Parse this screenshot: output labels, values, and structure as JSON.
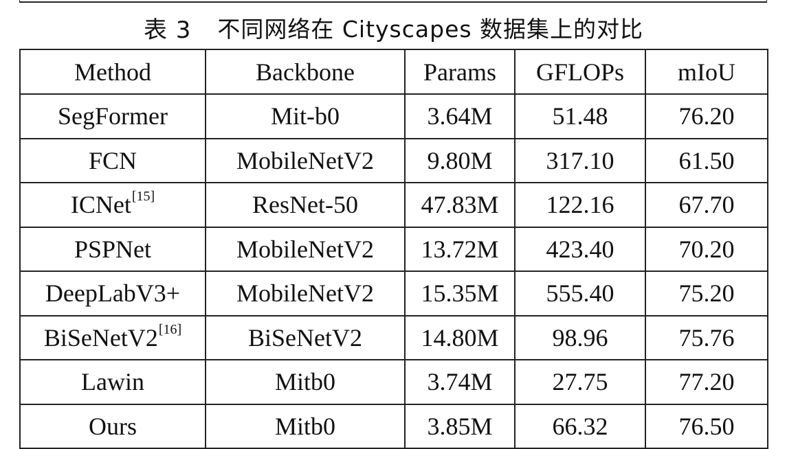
{
  "caption": {
    "label": "表 3",
    "title": "不同网络在 Cityscapes 数据集上的对比"
  },
  "table": {
    "headers": [
      "Method",
      "Backbone",
      "Params",
      "GFLOPs",
      "mIoU"
    ],
    "rows": [
      {
        "method": "SegFormer",
        "ref": "",
        "backbone": "Mit-b0",
        "params": "3.64M",
        "gflops": "51.48",
        "miou": "76.20"
      },
      {
        "method": "FCN",
        "ref": "",
        "backbone": "MobileNetV2",
        "params": "9.80M",
        "gflops": "317.10",
        "miou": "61.50"
      },
      {
        "method": "ICNet",
        "ref": "[15]",
        "backbone": "ResNet-50",
        "params": "47.83M",
        "gflops": "122.16",
        "miou": "67.70"
      },
      {
        "method": "PSPNet",
        "ref": "",
        "backbone": "MobileNetV2",
        "params": "13.72M",
        "gflops": "423.40",
        "miou": "70.20"
      },
      {
        "method": "DeepLabV3+",
        "ref": "",
        "backbone": "MobileNetV2",
        "params": "15.35M",
        "gflops": "555.40",
        "miou": "75.20"
      },
      {
        "method": "BiSeNetV2",
        "ref": "[16]",
        "backbone": "BiSeNetV2",
        "params": "14.80M",
        "gflops": "98.96",
        "miou": "75.76"
      },
      {
        "method": "Lawin",
        "ref": "",
        "backbone": "Mitb0",
        "params": "3.74M",
        "gflops": "27.75",
        "miou": "77.20"
      },
      {
        "method": "Ours",
        "ref": "",
        "backbone": "Mitb0",
        "params": "3.85M",
        "gflops": "66.32",
        "miou": "76.50"
      }
    ]
  }
}
